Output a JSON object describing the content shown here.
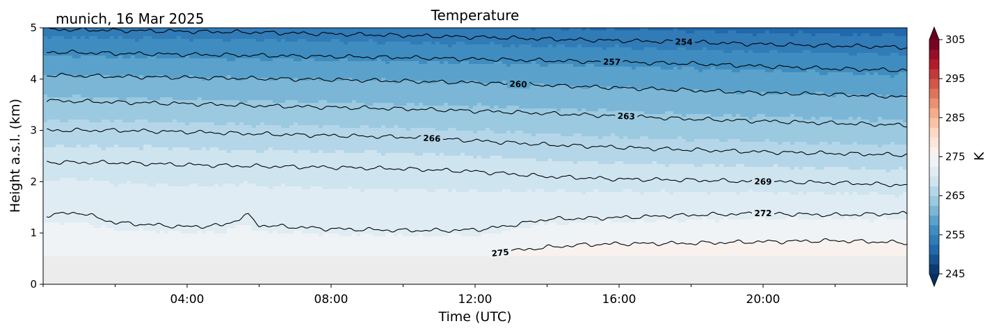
{
  "chart_data": {
    "type": "contourf",
    "title": "Temperature",
    "annotation": "munich, 16 Mar 2025",
    "xlabel": "Time (UTC)",
    "ylabel": "Height a.s.l. (km)",
    "x_ticks": [
      "04:00",
      "08:00",
      "12:00",
      "16:00",
      "20:00"
    ],
    "x_tick_hours": [
      4,
      8,
      12,
      16,
      20
    ],
    "xlim_hours": [
      0,
      24
    ],
    "y_ticks": [
      "0",
      "1",
      "2",
      "3",
      "4",
      "5"
    ],
    "y_tick_values": [
      0,
      1,
      2,
      3,
      4,
      5
    ],
    "ylim_km": [
      0,
      5
    ],
    "masked_below_km": 0.55,
    "masked_color": "#ececec",
    "colorbar": {
      "label": "K",
      "ticks": [
        "245",
        "255",
        "265",
        "275",
        "285",
        "295",
        "305"
      ],
      "tick_values": [
        245,
        255,
        265,
        275,
        285,
        295,
        305
      ],
      "range": [
        245,
        305
      ],
      "step": 2.5,
      "extend": "both",
      "colormap": "RdBu_r",
      "stops": [
        "#053061",
        "#2166ac",
        "#4393c3",
        "#92c5de",
        "#d1e5f0",
        "#f7f7f7",
        "#fddbc7",
        "#f4a582",
        "#d6604d",
        "#b2182b",
        "#67001f"
      ]
    },
    "contours": [
      {
        "level": "254",
        "label_hour": 17.8,
        "points": [
          [
            0.1,
            4.97
          ],
          [
            2,
            4.95
          ],
          [
            4,
            4.93
          ],
          [
            6,
            4.91
          ],
          [
            8,
            4.88
          ],
          [
            10,
            4.85
          ],
          [
            12,
            4.82
          ],
          [
            14,
            4.78
          ],
          [
            16,
            4.75
          ],
          [
            18,
            4.72
          ],
          [
            20,
            4.68
          ],
          [
            22,
            4.65
          ],
          [
            24,
            4.62
          ]
        ]
      },
      {
        "level": "257",
        "label_hour": 15.8,
        "points": [
          [
            0.1,
            4.53
          ],
          [
            2,
            4.5
          ],
          [
            4,
            4.48
          ],
          [
            6,
            4.46
          ],
          [
            8,
            4.44
          ],
          [
            10,
            4.42
          ],
          [
            12,
            4.39
          ],
          [
            14,
            4.36
          ],
          [
            16,
            4.33
          ],
          [
            18,
            4.3
          ],
          [
            20,
            4.25
          ],
          [
            22,
            4.2
          ],
          [
            24,
            4.17
          ]
        ]
      },
      {
        "level": "260",
        "label_hour": 13.2,
        "points": [
          [
            0.1,
            4.08
          ],
          [
            2,
            4.05
          ],
          [
            4,
            4.03
          ],
          [
            6,
            4.01
          ],
          [
            8,
            3.99
          ],
          [
            10,
            3.96
          ],
          [
            12,
            3.93
          ],
          [
            14,
            3.88
          ],
          [
            16,
            3.83
          ],
          [
            18,
            3.78
          ],
          [
            20,
            3.73
          ],
          [
            22,
            3.7
          ],
          [
            24,
            3.65
          ]
        ]
      },
      {
        "level": "263",
        "label_hour": 16.2,
        "points": [
          [
            0.1,
            3.58
          ],
          [
            2,
            3.55
          ],
          [
            4,
            3.52
          ],
          [
            6,
            3.48
          ],
          [
            8,
            3.45
          ],
          [
            10,
            3.42
          ],
          [
            12,
            3.38
          ],
          [
            14,
            3.33
          ],
          [
            16,
            3.28
          ],
          [
            18,
            3.22
          ],
          [
            20,
            3.18
          ],
          [
            22,
            3.14
          ],
          [
            24,
            3.1
          ]
        ]
      },
      {
        "level": "266",
        "label_hour": 10.8,
        "points": [
          [
            0.1,
            3.0
          ],
          [
            2,
            3.0
          ],
          [
            4,
            2.97
          ],
          [
            6,
            2.93
          ],
          [
            8,
            2.9
          ],
          [
            10,
            2.87
          ],
          [
            12,
            2.8
          ],
          [
            14,
            2.72
          ],
          [
            16,
            2.67
          ],
          [
            18,
            2.62
          ],
          [
            20,
            2.58
          ],
          [
            22,
            2.55
          ],
          [
            24,
            2.52
          ]
        ]
      },
      {
        "level": "269",
        "label_hour": 20.0,
        "points": [
          [
            0.1,
            2.38
          ],
          [
            2,
            2.37
          ],
          [
            4,
            2.33
          ],
          [
            6,
            2.3
          ],
          [
            8,
            2.28
          ],
          [
            10,
            2.25
          ],
          [
            12,
            2.2
          ],
          [
            14,
            2.1
          ],
          [
            16,
            2.05
          ],
          [
            18,
            2.03
          ],
          [
            20,
            2.0
          ],
          [
            22,
            1.98
          ],
          [
            24,
            1.93
          ]
        ]
      },
      {
        "level": "272",
        "label_hour": 20.0,
        "points": [
          [
            0.1,
            1.35
          ],
          [
            1,
            1.4
          ],
          [
            2,
            1.2
          ],
          [
            4,
            1.12
          ],
          [
            5,
            1.15
          ],
          [
            5.7,
            1.35
          ],
          [
            6,
            1.15
          ],
          [
            8,
            1.08
          ],
          [
            10,
            1.05
          ],
          [
            11.5,
            1.05
          ],
          [
            12.3,
            1.08
          ],
          [
            13,
            1.15
          ],
          [
            14,
            1.27
          ],
          [
            16,
            1.3
          ],
          [
            18,
            1.35
          ],
          [
            20,
            1.38
          ],
          [
            22,
            1.35
          ],
          [
            24,
            1.38
          ]
        ]
      },
      {
        "level": "275",
        "label_hour": 12.7,
        "points": [
          [
            12.4,
            0.6
          ],
          [
            12.9,
            0.62
          ],
          [
            13.1,
            0.66
          ],
          [
            14,
            0.72
          ],
          [
            15,
            0.77
          ],
          [
            16,
            0.79
          ],
          [
            18,
            0.8
          ],
          [
            20,
            0.83
          ],
          [
            22,
            0.85
          ],
          [
            24,
            0.81
          ]
        ]
      }
    ]
  }
}
